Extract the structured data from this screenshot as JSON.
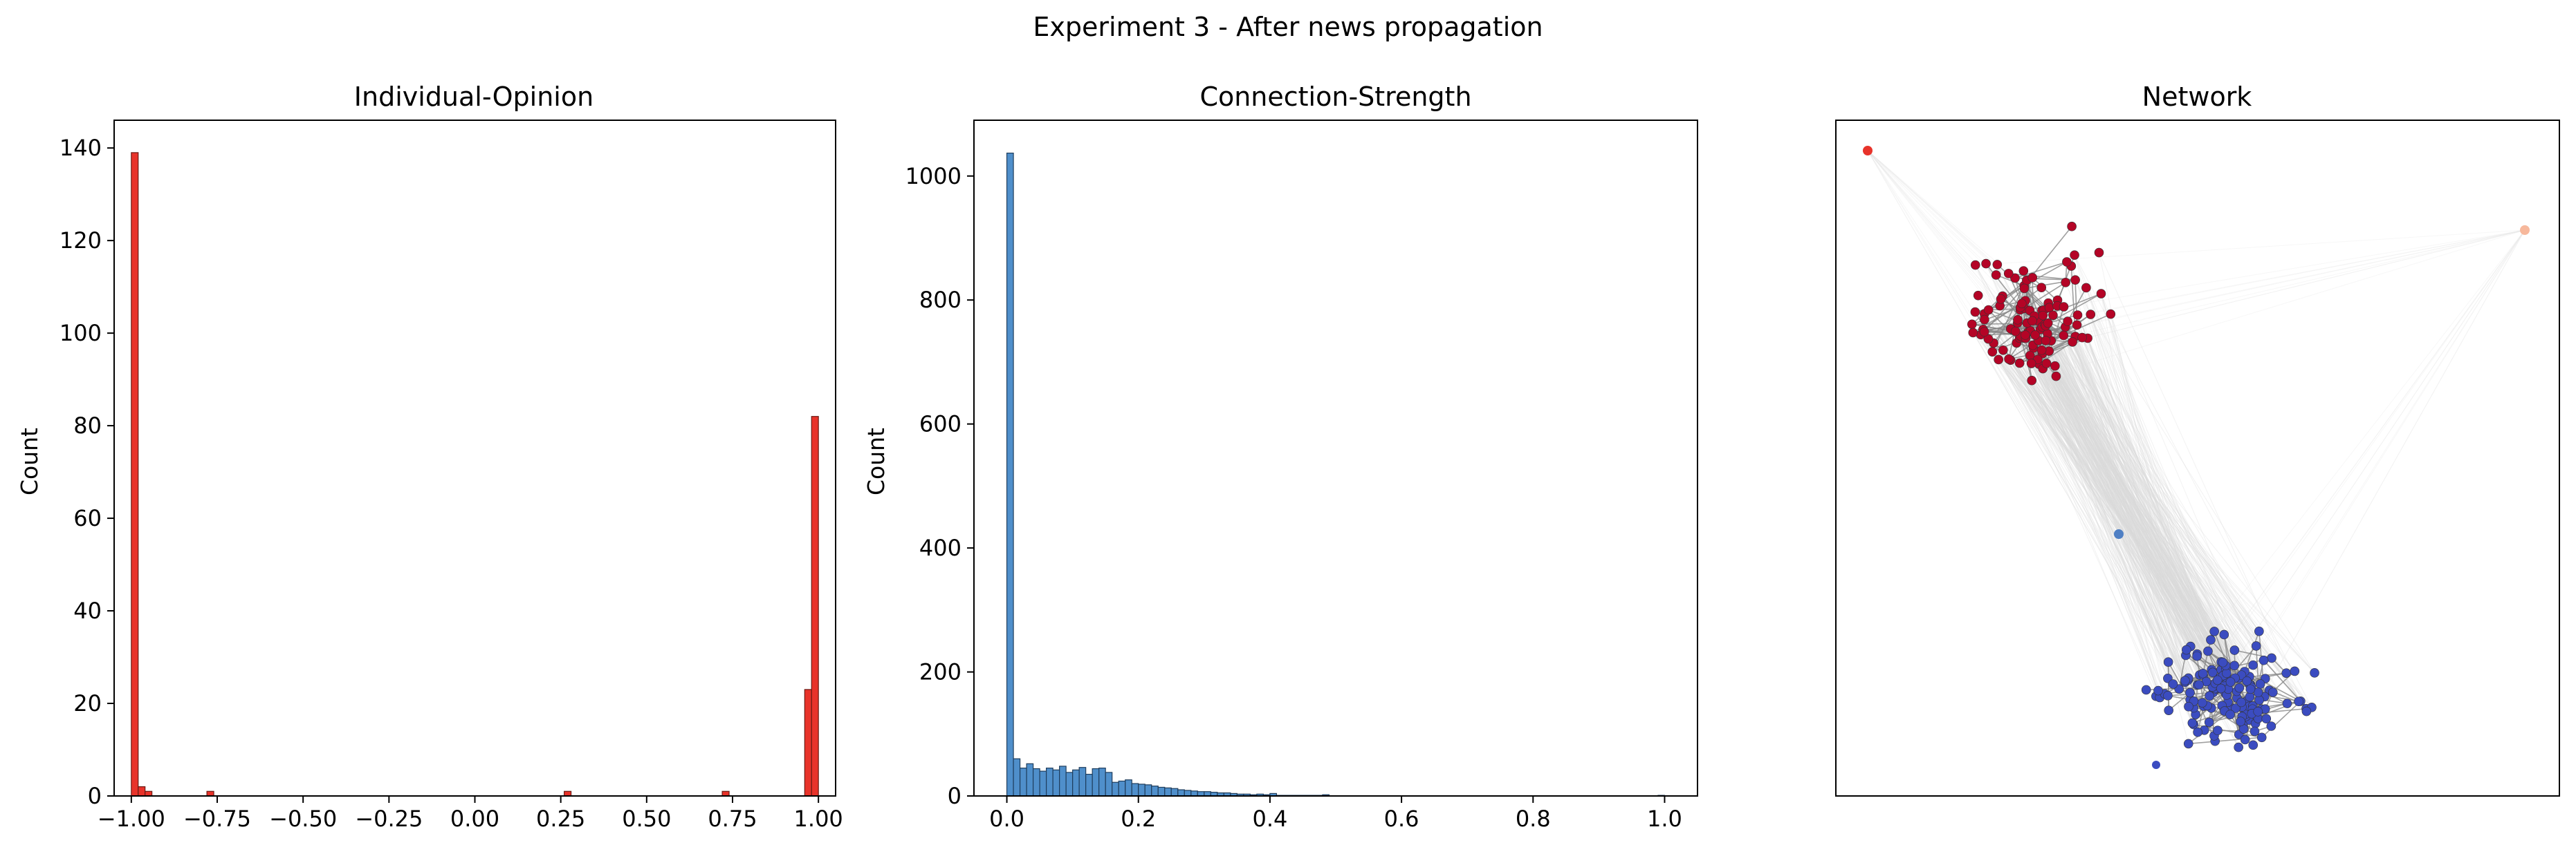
{
  "figure": {
    "suptitle": "Experiment 3 - After news propagation"
  },
  "chart_data": [
    {
      "type": "bar",
      "title": "Individual-Opinion",
      "xlabel": "",
      "ylabel": "Count",
      "xlim": [
        -1.05,
        1.05
      ],
      "ylim": [
        0,
        146
      ],
      "xticks": [
        -1.0,
        -0.75,
        -0.5,
        -0.25,
        0.0,
        0.25,
        0.5,
        0.75,
        1.0
      ],
      "xtick_labels": [
        "−1.00",
        "−0.75",
        "−0.50",
        "−0.25",
        "0.00",
        "0.25",
        "0.50",
        "0.75",
        "1.00"
      ],
      "yticks": [
        0,
        20,
        40,
        60,
        80,
        100,
        120,
        140
      ],
      "ytick_labels": [
        "0",
        "20",
        "40",
        "60",
        "80",
        "100",
        "120",
        "140"
      ],
      "bin_width": 0.02,
      "color": "#e8332a",
      "bins": [
        {
          "x": -1.0,
          "count": 139
        },
        {
          "x": -0.98,
          "count": 2
        },
        {
          "x": -0.96,
          "count": 1
        },
        {
          "x": -0.78,
          "count": 1
        },
        {
          "x": 0.26,
          "count": 1
        },
        {
          "x": 0.72,
          "count": 1
        },
        {
          "x": 0.96,
          "count": 23
        },
        {
          "x": 0.98,
          "count": 82
        }
      ]
    },
    {
      "type": "bar",
      "title": "Connection-Strength",
      "xlabel": "",
      "ylabel": "Count",
      "xlim": [
        -0.05,
        1.05
      ],
      "ylim": [
        0,
        1090
      ],
      "xticks": [
        0.0,
        0.2,
        0.4,
        0.6,
        0.8,
        1.0
      ],
      "xtick_labels": [
        "0.0",
        "0.2",
        "0.4",
        "0.6",
        "0.8",
        "1.0"
      ],
      "yticks": [
        0,
        200,
        400,
        600,
        800,
        1000
      ],
      "ytick_labels": [
        "0",
        "200",
        "400",
        "600",
        "800",
        "1000"
      ],
      "bin_width": 0.01,
      "bin_start": 0.0,
      "color": "#4f8fcb",
      "counts": [
        1037,
        60,
        45,
        52,
        44,
        40,
        45,
        42,
        48,
        38,
        42,
        46,
        35,
        44,
        45,
        38,
        22,
        24,
        26,
        20,
        19,
        18,
        16,
        14,
        13,
        12,
        10,
        9,
        8,
        7,
        7,
        6,
        5,
        5,
        4,
        3,
        3,
        2,
        3,
        2,
        4,
        1,
        1,
        1,
        1,
        1,
        1,
        1,
        2,
        0,
        0,
        0,
        0,
        0,
        0,
        0,
        0,
        0,
        0,
        0,
        0,
        0,
        0,
        0,
        0,
        0,
        0,
        0,
        0,
        0,
        0,
        0,
        0,
        0,
        0,
        0,
        0,
        0,
        0,
        0,
        0,
        0,
        0,
        0,
        0,
        0,
        0,
        0,
        0,
        0,
        0,
        0,
        0,
        0,
        0,
        0,
        0,
        0,
        0,
        1
      ]
    },
    {
      "type": "scatter",
      "title": "Network",
      "xlabel": "",
      "ylabel": "",
      "axes_ticks": false,
      "clusters": [
        {
          "name": "",
          "color": "#b40426",
          "nodes": 110
        },
        {
          "name": "",
          "color": "#3b4cc0",
          "nodes": 150
        }
      ],
      "outlier_node_colors": [
        "#e8332a",
        "#f7b89c",
        "#4f7fc4"
      ],
      "edge_color": "#888888"
    }
  ]
}
